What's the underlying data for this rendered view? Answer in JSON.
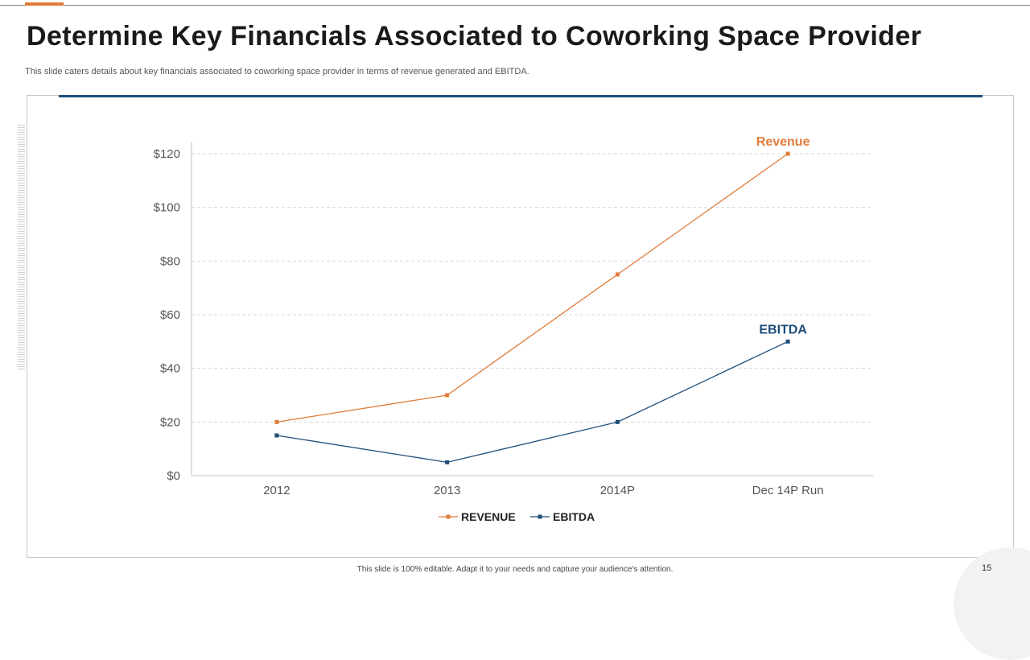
{
  "slide": {
    "title": "Determine Key Financials Associated to Coworking Space Provider",
    "subtitle": "This slide caters details about key financials associated to coworking space provider in terms of revenue generated and EBITDA.",
    "footer": "This slide is 100% editable. Adapt it to your needs and capture your audience's attention.",
    "page_number": "15"
  },
  "colors": {
    "accent": "#e07b39",
    "brand": "#1f4e79",
    "revenue": "#e07b39",
    "ebitda": "#1f4e79"
  },
  "chart_data": {
    "type": "line",
    "title": "",
    "xlabel": "",
    "ylabel": "",
    "categories": [
      "2012",
      "2013",
      "2014P",
      "Dec 14P Run"
    ],
    "series": [
      {
        "name": "REVENUE",
        "annotation": "Revenue",
        "values": [
          20,
          30,
          75,
          120
        ]
      },
      {
        "name": "EBITDA",
        "annotation": "EBITDA",
        "values": [
          15,
          5,
          20,
          50
        ]
      }
    ],
    "ylim": [
      0,
      120
    ],
    "yticks": [
      0,
      20,
      40,
      60,
      80,
      100,
      120
    ],
    "tick_prefix": "$",
    "grid": true,
    "legend": "bottom-center"
  }
}
